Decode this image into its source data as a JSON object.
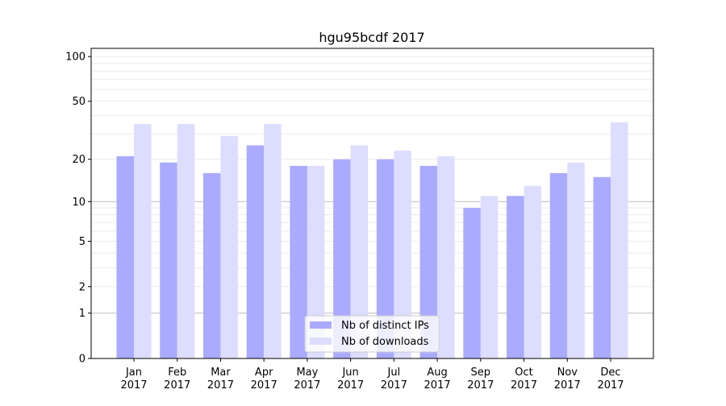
{
  "chart_data": {
    "type": "bar",
    "title": "hgu95bcdf 2017",
    "xlabel": "",
    "ylabel": "",
    "yscale": "log(1+x)",
    "ylim": [
      0,
      113.5
    ],
    "yticks": [
      0,
      1,
      2,
      5,
      10,
      20,
      50,
      100
    ],
    "grid": true,
    "legend_placement": "bottom-center",
    "categories": [
      "Jan\n2017",
      "Feb\n2017",
      "Mar\n2017",
      "Apr\n2017",
      "May\n2017",
      "Jun\n2017",
      "Jul\n2017",
      "Aug\n2017",
      "Sep\n2017",
      "Oct\n2017",
      "Nov\n2017",
      "Dec\n2017"
    ],
    "series": [
      {
        "name": "Nb of distinct IPs",
        "color": "#aaaaff",
        "values": [
          21,
          19,
          16,
          25,
          18,
          20,
          20,
          18,
          9,
          11,
          16,
          15
        ]
      },
      {
        "name": "Nb of downloads",
        "color": "#ddddff",
        "values": [
          35,
          35,
          29,
          35,
          18,
          25,
          23,
          21,
          11,
          13,
          19,
          36
        ]
      }
    ]
  }
}
